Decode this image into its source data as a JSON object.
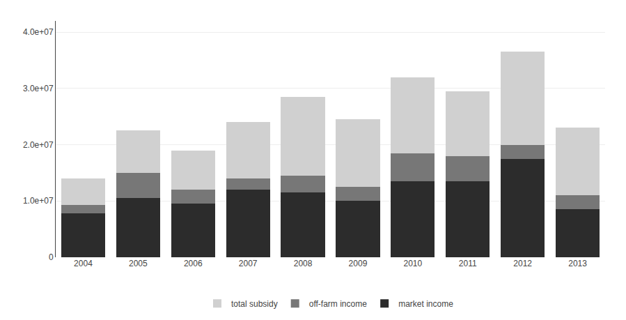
{
  "chart_data": {
    "type": "bar",
    "stacked": true,
    "categories": [
      "2004",
      "2005",
      "2006",
      "2007",
      "2008",
      "2009",
      "2010",
      "2011",
      "2012",
      "2013"
    ],
    "series": [
      {
        "name": "market income",
        "color": "#2c2c2c",
        "values": [
          7800000,
          10500000,
          9500000,
          12000000,
          11500000,
          10000000,
          13500000,
          13500000,
          17500000,
          8500000
        ]
      },
      {
        "name": "off-farm income",
        "color": "#777777",
        "values": [
          1500000,
          4500000,
          2500000,
          2000000,
          3000000,
          2500000,
          5000000,
          4500000,
          2500000,
          2500000
        ]
      },
      {
        "name": "total subsidy",
        "color": "#d0d0d0",
        "values": [
          4700000,
          7500000,
          7000000,
          10000000,
          14000000,
          12000000,
          13500000,
          11500000,
          16500000,
          12000000
        ]
      }
    ],
    "ylim": [
      0,
      42000000
    ],
    "yticks": [
      0,
      {
        "value": 10000000,
        "label": "1.0e+07"
      },
      {
        "value": 20000000,
        "label": "2.0e+07"
      },
      {
        "value": 30000000,
        "label": "3.0e+07"
      },
      {
        "value": 40000000,
        "label": "4.0e+07"
      }
    ],
    "grid": true,
    "legend": "bottom"
  }
}
